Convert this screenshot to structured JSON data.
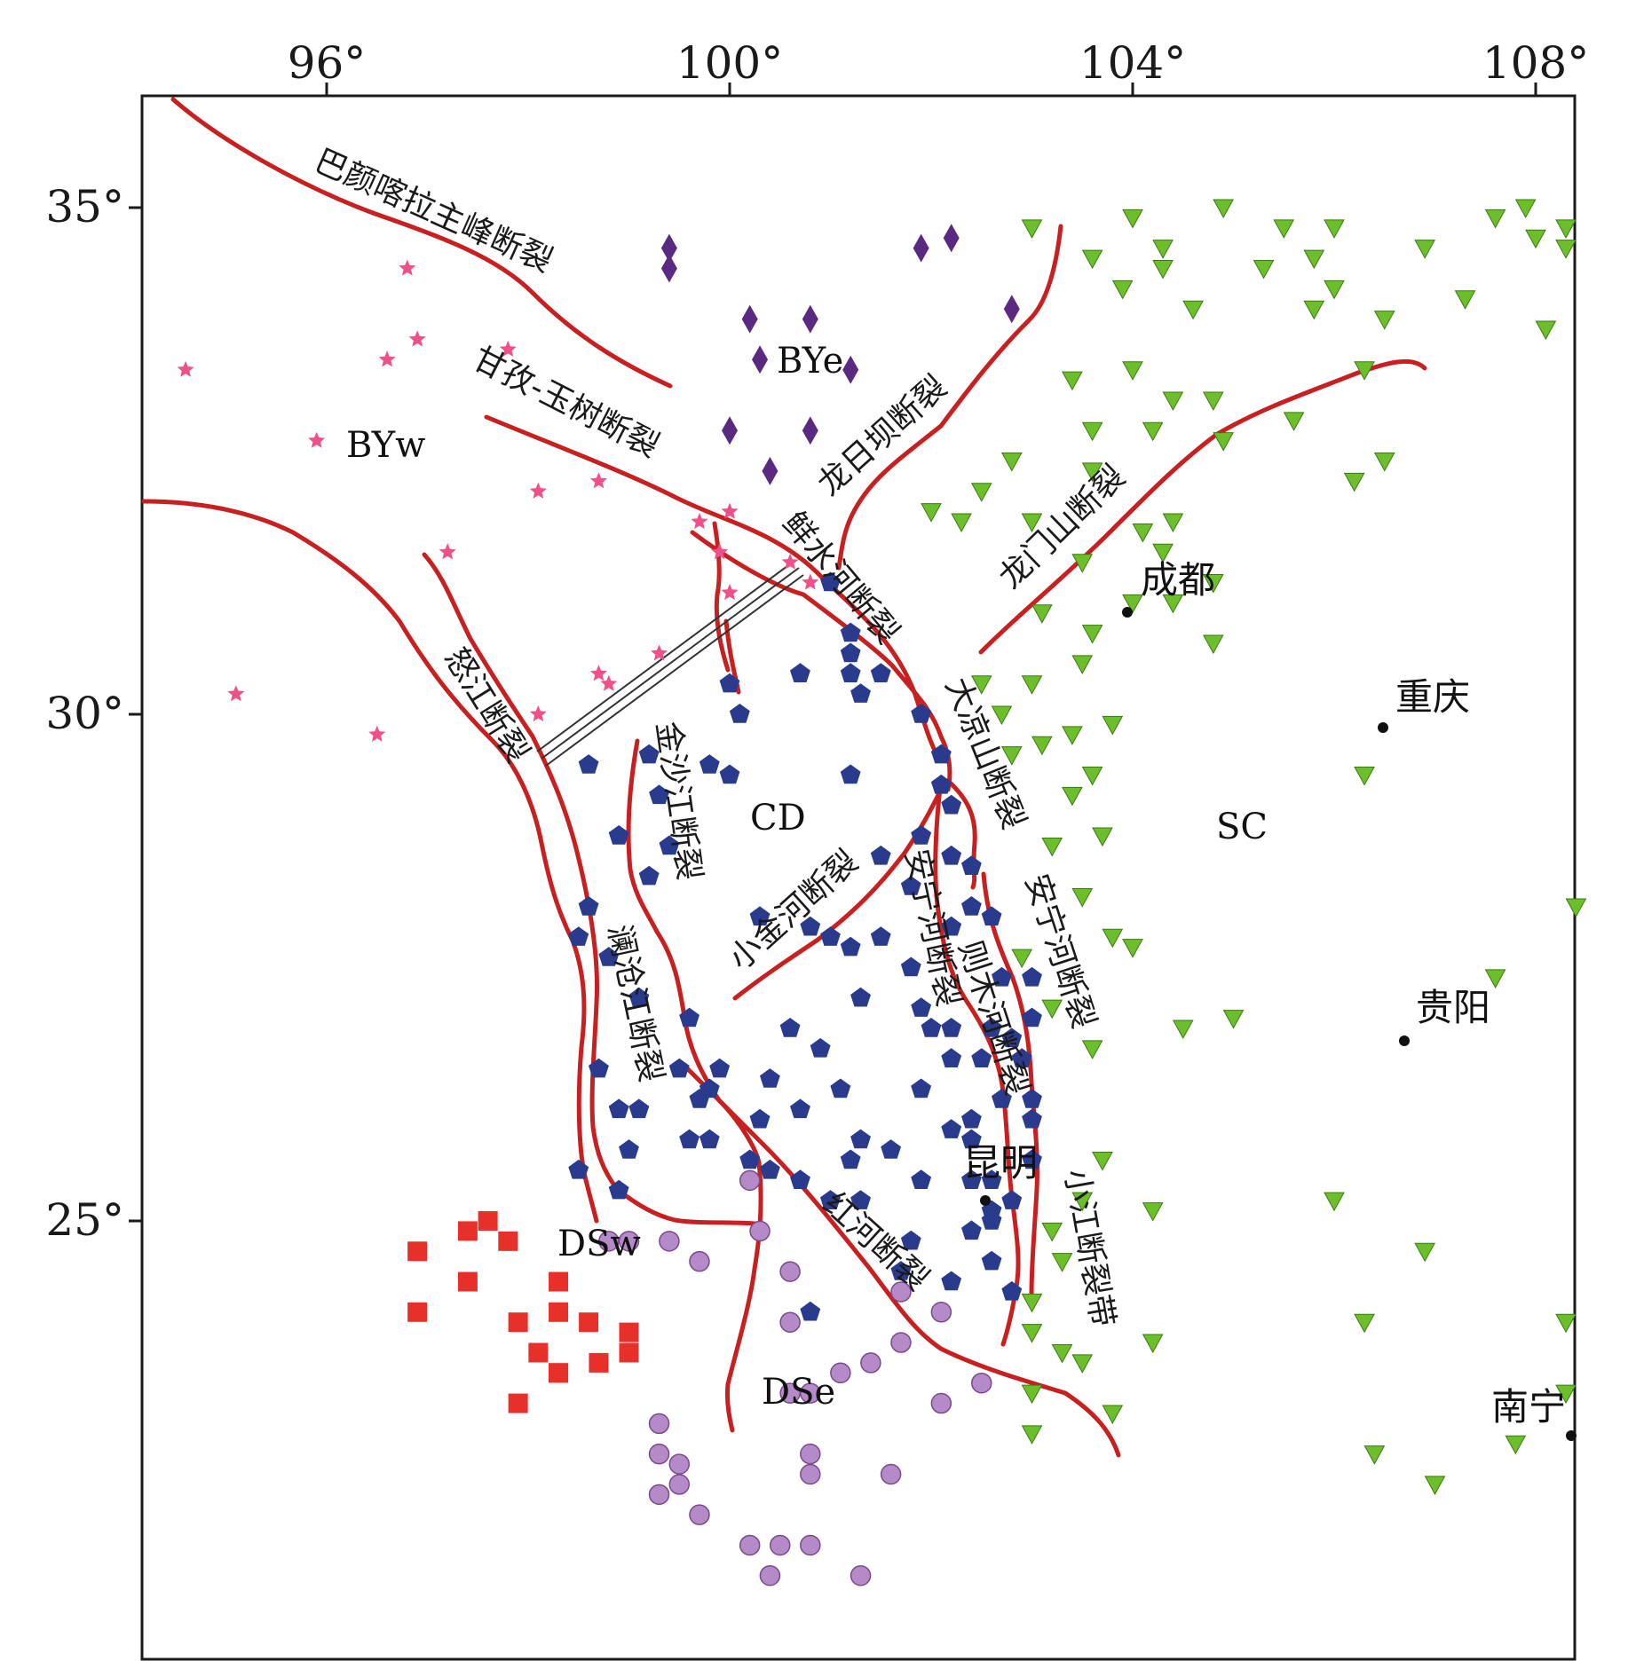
{
  "x_ticks": [
    {
      "value": 96,
      "label": "96°"
    },
    {
      "value": 100,
      "label": "100°"
    },
    {
      "value": 104,
      "label": "104°"
    },
    {
      "value": 108,
      "label": "108°"
    }
  ],
  "y_ticks": [
    {
      "value": 35,
      "label": "35°"
    },
    {
      "value": 30,
      "label": "30°"
    },
    {
      "value": 25,
      "label": "25°"
    }
  ],
  "colors": {
    "fault": "#c82020",
    "BYw": "#f0508a",
    "BYe": "#5a2a82",
    "CD": "#2a3a8c",
    "DSw": "#e8302a",
    "DSe": "#b48ac8",
    "SC": "#6cbf2a"
  },
  "regions": {
    "BYw": "BYw",
    "BYe": "BYe",
    "CD": "CD",
    "SC": "SC",
    "DSw": "DSw",
    "DSe": "DSe"
  },
  "cities": {
    "chengdu": "成都",
    "chongqing": "重庆",
    "guiyang": "贵阳",
    "kunming": "昆明",
    "nanning": "南宁"
  },
  "faults": {
    "bayan_har": "巴颜喀拉主峰断裂",
    "ganzi_yushu": "甘孜-玉树断裂",
    "longriba": "龙日坝断裂",
    "longmenshan": "龙门山断裂",
    "xianshuihe": "鲜水河断裂",
    "dadu": "大凉山断裂",
    "nujiang": "怒江断裂",
    "jinshajiang": "金沙江断裂",
    "lancangjiang": "澜沧江断裂",
    "xiaojinhe": "小金河断裂",
    "anninghe_w": "安宁河断裂",
    "zemuhe": "则木河断裂",
    "anninghe_e": "安宁河断裂",
    "xiaojiang": "小江断裂带",
    "honghe": "红河断裂"
  },
  "stations": {
    "BYw": [
      [
        94.6,
        33.4
      ],
      [
        95.1,
        30.2
      ],
      [
        95.9,
        32.7
      ],
      [
        96.5,
        29.8
      ],
      [
        96.6,
        33.5
      ],
      [
        96.8,
        34.4
      ],
      [
        96.9,
        33.7
      ],
      [
        97.2,
        31.6
      ],
      [
        97.8,
        33.6
      ],
      [
        98.1,
        32.2
      ],
      [
        98.1,
        30.0
      ],
      [
        98.7,
        30.4
      ],
      [
        98.8,
        30.3
      ],
      [
        98.7,
        32.3
      ],
      [
        99.3,
        30.6
      ],
      [
        99.7,
        31.9
      ],
      [
        99.9,
        31.6
      ],
      [
        100.0,
        32.0
      ],
      [
        100.0,
        31.2
      ],
      [
        100.6,
        31.5
      ],
      [
        100.8,
        31.3
      ]
    ],
    "BYe": [
      [
        99.4,
        34.6
      ],
      [
        99.4,
        34.4
      ],
      [
        100.2,
        33.9
      ],
      [
        100.3,
        33.5
      ],
      [
        100.0,
        32.8
      ],
      [
        100.4,
        32.4
      ],
      [
        100.8,
        32.8
      ],
      [
        100.8,
        33.9
      ],
      [
        101.2,
        33.4
      ],
      [
        101.9,
        34.6
      ],
      [
        102.2,
        34.7
      ],
      [
        102.8,
        34.0
      ]
    ],
    "CD": [
      [
        101.0,
        31.3
      ],
      [
        101.2,
        30.8
      ],
      [
        101.2,
        30.6
      ],
      [
        101.2,
        30.4
      ],
      [
        101.5,
        30.4
      ],
      [
        101.3,
        30.2
      ],
      [
        100.7,
        30.4
      ],
      [
        100.0,
        30.3
      ],
      [
        100.1,
        30.0
      ],
      [
        98.6,
        29.5
      ],
      [
        99.2,
        29.6
      ],
      [
        99.8,
        29.5
      ],
      [
        100.0,
        29.4
      ],
      [
        101.2,
        29.4
      ],
      [
        101.9,
        30.0
      ],
      [
        102.1,
        29.6
      ],
      [
        102.1,
        29.3
      ],
      [
        102.2,
        29.1
      ],
      [
        101.9,
        28.8
      ],
      [
        101.5,
        28.6
      ],
      [
        102.2,
        28.6
      ],
      [
        102.4,
        28.5
      ],
      [
        102.4,
        28.1
      ],
      [
        102.2,
        27.9
      ],
      [
        102.7,
        27.4
      ],
      [
        103.0,
        27.4
      ],
      [
        103.0,
        27.0
      ],
      [
        102.8,
        26.8
      ],
      [
        102.5,
        26.6
      ],
      [
        102.2,
        26.6
      ],
      [
        102.2,
        26.9
      ],
      [
        102.6,
        26.9
      ],
      [
        102.9,
        26.6
      ],
      [
        103.0,
        26.2
      ],
      [
        102.7,
        26.2
      ],
      [
        102.4,
        26.0
      ],
      [
        102.2,
        25.9
      ],
      [
        101.9,
        26.3
      ],
      [
        101.6,
        25.7
      ],
      [
        101.3,
        25.8
      ],
      [
        101.2,
        25.6
      ],
      [
        101.0,
        25.2
      ],
      [
        100.7,
        25.4
      ],
      [
        100.4,
        25.5
      ],
      [
        100.2,
        25.6
      ],
      [
        99.8,
        25.8
      ],
      [
        99.6,
        25.8
      ],
      [
        99.7,
        26.2
      ],
      [
        99.5,
        26.5
      ],
      [
        99.6,
        27.0
      ],
      [
        99.1,
        27.2
      ],
      [
        98.8,
        27.6
      ],
      [
        98.5,
        27.8
      ],
      [
        98.6,
        28.1
      ],
      [
        99.2,
        28.4
      ],
      [
        98.9,
        28.8
      ],
      [
        99.4,
        28.7
      ],
      [
        99.3,
        29.2
      ],
      [
        98.7,
        26.5
      ],
      [
        98.9,
        26.1
      ],
      [
        99.1,
        26.1
      ],
      [
        98.5,
        25.5
      ],
      [
        99.0,
        25.7
      ],
      [
        98.9,
        25.3
      ],
      [
        99.8,
        26.3
      ],
      [
        99.9,
        26.5
      ],
      [
        100.3,
        26.0
      ],
      [
        100.4,
        26.4
      ],
      [
        100.7,
        26.1
      ],
      [
        100.9,
        26.7
      ],
      [
        101.1,
        26.3
      ],
      [
        100.6,
        26.9
      ],
      [
        101.3,
        27.2
      ],
      [
        101.5,
        27.8
      ],
      [
        101.8,
        27.5
      ],
      [
        102.0,
        26.9
      ],
      [
        101.9,
        27.1
      ],
      [
        100.3,
        28.0
      ],
      [
        100.8,
        27.9
      ],
      [
        101.0,
        27.8
      ],
      [
        101.2,
        27.7
      ],
      [
        101.8,
        28.3
      ],
      [
        102.6,
        28.0
      ],
      [
        102.4,
        25.4
      ],
      [
        102.6,
        25.4
      ],
      [
        102.8,
        25.2
      ],
      [
        103.0,
        25.6
      ],
      [
        102.4,
        25.8
      ],
      [
        103.0,
        26.0
      ],
      [
        102.6,
        25.0
      ],
      [
        102.4,
        24.9
      ],
      [
        102.6,
        24.6
      ],
      [
        102.8,
        24.3
      ],
      [
        101.8,
        24.8
      ],
      [
        101.3,
        25.2
      ],
      [
        101.0,
        25.2
      ],
      [
        100.8,
        24.1
      ],
      [
        102.6,
        25.1
      ],
      [
        101.9,
        25.4
      ],
      [
        101.7,
        24.5
      ],
      [
        102.2,
        24.4
      ]
    ],
    "DSw": [
      [
        96.9,
        24.7
      ],
      [
        97.4,
        24.9
      ],
      [
        97.6,
        25.0
      ],
      [
        97.8,
        24.8
      ],
      [
        96.9,
        24.1
      ],
      [
        97.4,
        24.4
      ],
      [
        98.3,
        24.4
      ],
      [
        97.9,
        24.0
      ],
      [
        98.3,
        24.1
      ],
      [
        98.6,
        24.0
      ],
      [
        98.1,
        23.7
      ],
      [
        98.3,
        23.5
      ],
      [
        98.7,
        23.6
      ],
      [
        99.0,
        23.9
      ],
      [
        99.0,
        23.7
      ],
      [
        98.3,
        23.5
      ],
      [
        97.9,
        23.2
      ]
    ],
    "DSe": [
      [
        98.8,
        24.8
      ],
      [
        99.0,
        24.8
      ],
      [
        99.4,
        24.8
      ],
      [
        99.7,
        24.6
      ],
      [
        100.2,
        25.4
      ],
      [
        100.3,
        24.9
      ],
      [
        100.6,
        24.5
      ],
      [
        100.6,
        24.0
      ],
      [
        101.7,
        24.3
      ],
      [
        102.1,
        24.1
      ],
      [
        101.7,
        23.8
      ],
      [
        101.4,
        23.6
      ],
      [
        101.1,
        23.5
      ],
      [
        100.8,
        23.3
      ],
      [
        100.6,
        23.3
      ],
      [
        102.5,
        23.4
      ],
      [
        102.1,
        23.2
      ],
      [
        99.3,
        23.0
      ],
      [
        99.3,
        22.7
      ],
      [
        99.5,
        22.6
      ],
      [
        99.5,
        22.4
      ],
      [
        99.3,
        22.3
      ],
      [
        99.7,
        22.1
      ],
      [
        100.2,
        21.8
      ],
      [
        100.5,
        21.8
      ],
      [
        100.8,
        21.8
      ],
      [
        100.4,
        21.5
      ],
      [
        101.3,
        21.5
      ],
      [
        100.8,
        22.7
      ],
      [
        100.8,
        22.5
      ],
      [
        101.6,
        22.5
      ]
    ],
    "SC": [
      [
        103.0,
        34.8
      ],
      [
        103.6,
        34.5
      ],
      [
        103.9,
        34.2
      ],
      [
        104.0,
        34.9
      ],
      [
        104.3,
        34.4
      ],
      [
        104.3,
        34.6
      ],
      [
        104.6,
        34.0
      ],
      [
        104.9,
        35.0
      ],
      [
        105.3,
        34.4
      ],
      [
        105.5,
        34.8
      ],
      [
        105.8,
        34.5
      ],
      [
        105.8,
        34.0
      ],
      [
        106.0,
        34.8
      ],
      [
        106.0,
        34.2
      ],
      [
        106.5,
        33.9
      ],
      [
        106.9,
        34.6
      ],
      [
        107.3,
        34.1
      ],
      [
        107.6,
        34.9
      ],
      [
        107.9,
        35.0
      ],
      [
        108.0,
        34.7
      ],
      [
        108.3,
        34.8
      ],
      [
        108.3,
        34.6
      ],
      [
        108.1,
        33.8
      ],
      [
        103.6,
        32.8
      ],
      [
        104.0,
        33.4
      ],
      [
        104.4,
        33.1
      ],
      [
        104.8,
        33.1
      ],
      [
        104.9,
        32.7
      ],
      [
        105.6,
        32.9
      ],
      [
        106.3,
        33.4
      ],
      [
        106.2,
        32.3
      ],
      [
        106.5,
        32.5
      ],
      [
        104.2,
        32.8
      ],
      [
        103.4,
        33.3
      ],
      [
        103.6,
        32.4
      ],
      [
        102.8,
        32.5
      ],
      [
        102.5,
        32.2
      ],
      [
        102.3,
        31.9
      ],
      [
        102.0,
        32.0
      ],
      [
        103.0,
        31.9
      ],
      [
        103.5,
        31.5
      ],
      [
        104.1,
        31.8
      ],
      [
        104.4,
        31.9
      ],
      [
        104.4,
        31.1
      ],
      [
        104.3,
        31.6
      ],
      [
        104.8,
        31.3
      ],
      [
        104.8,
        30.7
      ],
      [
        104.0,
        31.1
      ],
      [
        103.6,
        30.8
      ],
      [
        103.5,
        30.5
      ],
      [
        103.1,
        31.0
      ],
      [
        103.0,
        30.3
      ],
      [
        102.5,
        30.3
      ],
      [
        102.7,
        30.0
      ],
      [
        102.8,
        29.6
      ],
      [
        103.1,
        29.7
      ],
      [
        103.4,
        29.8
      ],
      [
        103.4,
        29.2
      ],
      [
        103.8,
        29.9
      ],
      [
        103.6,
        29.4
      ],
      [
        103.2,
        28.7
      ],
      [
        103.7,
        28.8
      ],
      [
        103.5,
        28.2
      ],
      [
        103.8,
        27.8
      ],
      [
        104.0,
        27.7
      ],
      [
        102.9,
        27.6
      ],
      [
        103.2,
        27.1
      ],
      [
        103.6,
        26.7
      ],
      [
        104.5,
        26.9
      ],
      [
        103.7,
        25.6
      ],
      [
        103.5,
        25.2
      ],
      [
        104.2,
        25.1
      ],
      [
        103.2,
        24.9
      ],
      [
        103.3,
        24.6
      ],
      [
        103.0,
        24.2
      ],
      [
        103.0,
        23.9
      ],
      [
        103.3,
        23.7
      ],
      [
        103.5,
        23.6
      ],
      [
        103.0,
        23.3
      ],
      [
        103.0,
        22.9
      ],
      [
        103.8,
        23.1
      ],
      [
        104.2,
        23.8
      ],
      [
        106.0,
        25.2
      ],
      [
        106.3,
        24.0
      ],
      [
        106.9,
        24.7
      ],
      [
        105.0,
        27.0
      ],
      [
        106.3,
        29.4
      ],
      [
        107.6,
        27.4
      ],
      [
        108.3,
        24.0
      ],
      [
        108.3,
        23.3
      ],
      [
        107.8,
        22.8
      ],
      [
        107.0,
        22.4
      ],
      [
        106.4,
        22.7
      ],
      [
        108.4,
        28.1
      ]
    ]
  }
}
